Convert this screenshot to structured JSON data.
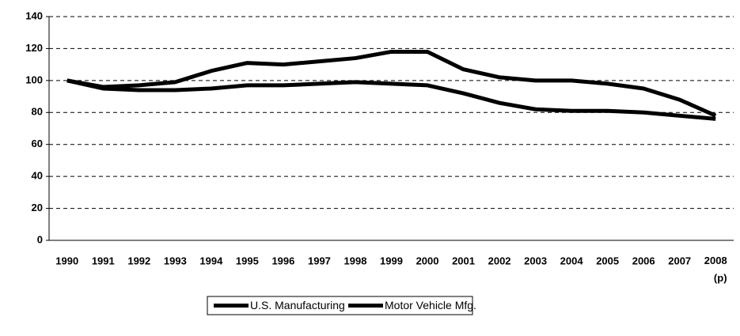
{
  "chart_data": {
    "type": "line",
    "categories": [
      "1990",
      "1991",
      "1992",
      "1993",
      "1994",
      "1995",
      "1996",
      "1997",
      "1998",
      "1999",
      "2000",
      "2001",
      "2002",
      "2003",
      "2004",
      "2005",
      "2006",
      "2007",
      "2008\n(p)"
    ],
    "series": [
      {
        "name": "U.S. Manufacturing",
        "color": "#000000",
        "values": [
          100,
          95,
          94,
          94,
          95,
          97,
          97,
          98,
          99,
          98,
          97,
          92,
          86,
          82,
          81,
          81,
          80,
          78,
          76
        ]
      },
      {
        "name": "Motor Vehicle Mfg.",
        "color": "#000000",
        "values": [
          100,
          96,
          97,
          99,
          106,
          111,
          110,
          112,
          114,
          118,
          118,
          107,
          102,
          100,
          100,
          98,
          95,
          88,
          78
        ]
      }
    ],
    "ylim": [
      0,
      140
    ],
    "yticks": [
      0,
      20,
      40,
      60,
      80,
      100,
      120,
      140
    ],
    "grid": true,
    "legend": "bottom"
  }
}
